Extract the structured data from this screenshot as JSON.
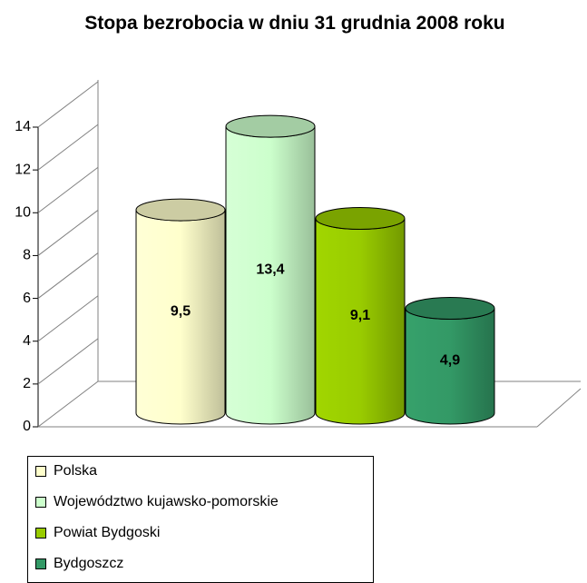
{
  "chart_data": {
    "type": "cylinder",
    "title": "Stopa bezrobocia w dniu 31 grudnia 2008 roku",
    "series": [
      {
        "name": "Polska",
        "color": "#ffffcc",
        "values": [
          9.5
        ],
        "value_labels": [
          "9,5"
        ]
      },
      {
        "name": "Województwo kujawsko-pomorskie",
        "color": "#ccffcc",
        "values": [
          13.4
        ],
        "value_labels": [
          "13,4"
        ]
      },
      {
        "name": "Powiat Bydgoski",
        "color": "#99cc00",
        "values": [
          9.1
        ],
        "value_labels": [
          "9,1"
        ]
      },
      {
        "name": "Bydgoszcz",
        "color": "#339966",
        "values": [
          4.9
        ],
        "value_labels": [
          "4,9"
        ]
      }
    ],
    "ylim": [
      0,
      14
    ],
    "yticks": [
      0,
      2,
      4,
      6,
      8,
      10,
      12,
      14
    ],
    "grid": true,
    "legend": "bottom-left"
  }
}
